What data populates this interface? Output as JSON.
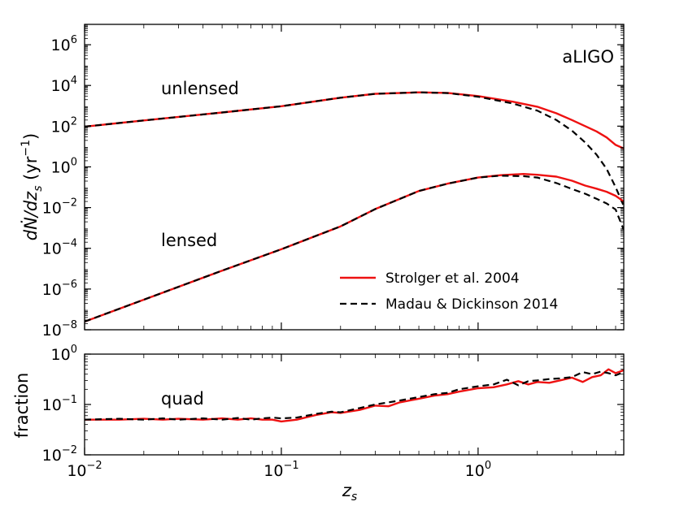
{
  "chart_data": {
    "type": "line",
    "x_scale": "log",
    "y_scale": "log",
    "xlim": [
      0.01,
      5.5
    ],
    "xlabel": {
      "base": "z",
      "sub": "s"
    },
    "x_ticks": [
      {
        "base": "10",
        "exp": "−2",
        "value": 0.01
      },
      {
        "base": "10",
        "exp": "−1",
        "value": 0.1
      },
      {
        "base": "10",
        "exp": "0",
        "value": 1
      }
    ],
    "panels": [
      {
        "id": "top",
        "ylabel": {
          "prefix": "dṄ/dz",
          "sub": "s",
          "unit_open": " (yr",
          "unit_exp": "−1",
          "unit_close": ")"
        },
        "ylim": [
          1e-08,
          10000000.0
        ],
        "y_ticks": [
          {
            "base": "10",
            "exp": "−8",
            "value": 1e-08
          },
          {
            "base": "10",
            "exp": "−6",
            "value": 1e-06
          },
          {
            "base": "10",
            "exp": "−4",
            "value": 0.0001
          },
          {
            "base": "10",
            "exp": "−2",
            "value": 0.01
          },
          {
            "base": "10",
            "exp": "0",
            "value": 1
          },
          {
            "base": "10",
            "exp": "2",
            "value": 100
          },
          {
            "base": "10",
            "exp": "4",
            "value": 10000
          },
          {
            "base": "10",
            "exp": "6",
            "value": 1000000
          }
        ],
        "annotations": [
          "aLIGO",
          "unlensed",
          "lensed"
        ],
        "legend": {
          "placement": "lower-right",
          "entries": [
            {
              "name": "Strolger et al. 2004",
              "color": "#ee1111",
              "style": "solid"
            },
            {
              "name": "Madau & Dickinson 2014",
              "color": "#000000",
              "style": "dashed"
            }
          ]
        },
        "series": [
          {
            "label": "unlensed",
            "model": "Strolger et al. 2004",
            "x": [
              0.01,
              0.02,
              0.05,
              0.1,
              0.2,
              0.3,
              0.5,
              0.7,
              1.0,
              1.5,
              2.0,
              2.5,
              3.0,
              3.5,
              4.0,
              4.5,
              5.0,
              5.5
            ],
            "y": [
              95,
              190,
              470,
              950,
              2500,
              3900,
              4600,
              4300,
              3000,
              1600,
              900,
              430,
              200,
              100,
              55,
              28,
              12,
              8
            ]
          },
          {
            "label": "unlensed",
            "model": "Madau & Dickinson 2014",
            "x": [
              0.01,
              0.02,
              0.05,
              0.1,
              0.2,
              0.3,
              0.5,
              0.7,
              1.0,
              1.5,
              2.0,
              2.5,
              3.0,
              3.5,
              4.0,
              4.5,
              5.0,
              5.5
            ],
            "y": [
              95,
              190,
              470,
              950,
              2500,
              3900,
              4600,
              4200,
              2800,
              1300,
              580,
              200,
              60,
              16,
              4,
              0.8,
              0.1,
              0.012
            ]
          },
          {
            "label": "lensed",
            "model": "Strolger et al. 2004",
            "x": [
              0.01,
              0.02,
              0.05,
              0.1,
              0.2,
              0.3,
              0.5,
              0.7,
              1.0,
              1.3,
              1.7,
              2.0,
              2.5,
              3.0,
              3.5,
              4.0,
              4.5,
              5.0,
              5.5
            ],
            "y": [
              2.5e-08,
              3e-07,
              8e-06,
              9e-05,
              0.0012,
              0.0085,
              0.065,
              0.15,
              0.3,
              0.39,
              0.45,
              0.41,
              0.33,
              0.21,
              0.12,
              0.085,
              0.06,
              0.038,
              0.02
            ]
          },
          {
            "label": "lensed",
            "model": "Madau & Dickinson 2014",
            "x": [
              0.01,
              0.02,
              0.05,
              0.1,
              0.2,
              0.3,
              0.5,
              0.7,
              1.0,
              1.3,
              1.7,
              2.0,
              2.5,
              3.0,
              3.5,
              4.0,
              4.5,
              5.0,
              5.5
            ],
            "y": [
              2.5e-08,
              3e-07,
              8e-06,
              9e-05,
              0.0012,
              0.0085,
              0.065,
              0.15,
              0.3,
              0.37,
              0.35,
              0.3,
              0.16,
              0.082,
              0.048,
              0.027,
              0.016,
              0.008,
              0.0008
            ]
          }
        ]
      },
      {
        "id": "bottom",
        "ylabel": "fraction",
        "ylim": [
          0.01,
          1
        ],
        "y_ticks": [
          {
            "base": "10",
            "exp": "−2",
            "value": 0.01
          },
          {
            "base": "10",
            "exp": "−1",
            "value": 0.1
          },
          {
            "base": "10",
            "exp": "0",
            "value": 1
          }
        ],
        "annotations": [
          "quad"
        ],
        "series": [
          {
            "label": "quad",
            "model": "Strolger et al. 2004",
            "x": [
              0.01,
              0.015,
              0.02,
              0.025,
              0.03,
              0.04,
              0.05,
              0.06,
              0.07,
              0.08,
              0.09,
              0.1,
              0.12,
              0.15,
              0.18,
              0.2,
              0.25,
              0.3,
              0.35,
              0.4,
              0.5,
              0.6,
              0.7,
              0.8,
              1.0,
              1.2,
              1.4,
              1.6,
              1.8,
              2.0,
              2.3,
              2.6,
              3.0,
              3.4,
              3.8,
              4.2,
              4.6,
              5.0,
              5.5
            ],
            "y": [
              0.05,
              0.05,
              0.052,
              0.05,
              0.052,
              0.05,
              0.053,
              0.05,
              0.053,
              0.05,
              0.05,
              0.046,
              0.05,
              0.062,
              0.07,
              0.068,
              0.078,
              0.095,
              0.092,
              0.11,
              0.13,
              0.15,
              0.16,
              0.18,
              0.21,
              0.22,
              0.25,
              0.29,
              0.25,
              0.28,
              0.27,
              0.3,
              0.34,
              0.28,
              0.35,
              0.38,
              0.5,
              0.42,
              0.48
            ]
          },
          {
            "label": "quad",
            "model": "Madau & Dickinson 2014",
            "x": [
              0.01,
              0.015,
              0.02,
              0.025,
              0.03,
              0.04,
              0.05,
              0.06,
              0.07,
              0.08,
              0.09,
              0.1,
              0.12,
              0.15,
              0.18,
              0.2,
              0.25,
              0.3,
              0.35,
              0.4,
              0.5,
              0.6,
              0.7,
              0.8,
              1.0,
              1.2,
              1.4,
              1.6,
              1.8,
              2.0,
              2.3,
              2.6,
              3.0,
              3.4,
              3.8,
              4.2,
              4.6,
              5.0,
              5.5
            ],
            "y": [
              0.05,
              0.052,
              0.05,
              0.053,
              0.05,
              0.053,
              0.05,
              0.054,
              0.05,
              0.053,
              0.055,
              0.053,
              0.055,
              0.065,
              0.072,
              0.07,
              0.085,
              0.1,
              0.11,
              0.12,
              0.14,
              0.16,
              0.17,
              0.2,
              0.23,
              0.25,
              0.31,
              0.24,
              0.29,
              0.3,
              0.32,
              0.33,
              0.35,
              0.44,
              0.4,
              0.45,
              0.42,
              0.38,
              0.44
            ]
          }
        ]
      }
    ]
  }
}
